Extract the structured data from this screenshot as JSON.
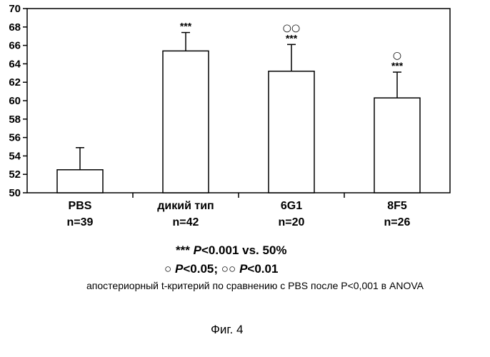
{
  "chart_data": {
    "type": "bar",
    "title": "",
    "xlabel": "",
    "ylabel": "",
    "ylim": [
      50,
      70
    ],
    "y_ticks": [
      "50",
      "52",
      "54",
      "56",
      "58",
      "60",
      "62",
      "64",
      "66",
      "68",
      "70"
    ],
    "grid": false,
    "categories": [
      {
        "name": "PBS",
        "n": "n=39"
      },
      {
        "name": "дикий тип",
        "n": "n=42"
      },
      {
        "name": "6G1",
        "n": "n=20"
      },
      {
        "name": "8F5",
        "n": "n=26"
      }
    ],
    "values": [
      52.5,
      65.4,
      63.2,
      60.3
    ],
    "error_upper": [
      2.4,
      2.0,
      2.9,
      2.8
    ],
    "significance_top": [
      "",
      "",
      "○○",
      "○"
    ],
    "significance_bottom": [
      "",
      "***",
      "***",
      "***"
    ],
    "bar_color": "#ffffff",
    "line_color": "#000000"
  },
  "legend": {
    "line1_stars": "***",
    "line1_p": "P",
    "line1_rest": "<0.001  vs.  50%",
    "line2_circle1": "○",
    "line2_p1": "P",
    "line2_rest1": "<0.05;",
    "line2_circle2": "○○",
    "line2_p2": "P",
    "line2_rest2": "<0.01",
    "line3": "апостериорный t-критерий по сравнению с PBS после P<0,001 в ANOVA"
  },
  "figure_label": "Фиг. 4"
}
